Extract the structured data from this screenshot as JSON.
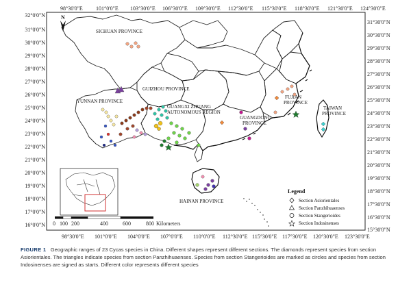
{
  "map": {
    "lon_labels": [
      "98°30'0\"E",
      "101°0'0\"E",
      "103°30'0\"E",
      "106°30'0\"E",
      "109°30'0\"E",
      "112°30'0\"E",
      "115°30'0\"E",
      "118°30'0\"E",
      "121°30'0\"E",
      "124°30'0\"E"
    ],
    "lon_labels_bottom": [
      "98°30'0\"E",
      "101°0'0\"E",
      "104°0'0\"E",
      "107°0'0\"E",
      "110°0'0\"E",
      "112°30'0\"E",
      "115°30'0\"E",
      "117°30'0\"E",
      "120°30'0\"E",
      "123°30'0\"E"
    ],
    "lat_labels_left": [
      "32°0'0\"N",
      "31°0'0\"N",
      "30°0'0\"N",
      "29°0'0\"N",
      "28°0'0\"N",
      "27°0'0\"N",
      "26°0'0\"N",
      "25°0'0\"N",
      "24°0'0\"N",
      "23°0'0\"N",
      "22°0'0\"N",
      "21°0'0\"N",
      "20°0'0\"N",
      "19°0'0\"N",
      "18°0'0\"N",
      "17°0'0\"N",
      "16°0'0\"N"
    ],
    "lat_labels_right": [
      "31°30'0\"N",
      "30°30'0\"N",
      "29°30'0\"N",
      "28°30'0\"N",
      "27°30'0\"N",
      "26°30'0\"N",
      "25°30'0\"N",
      "24°30'0\"N",
      "23°30'0\"N",
      "22°30'0\"N",
      "21°30'0\"N",
      "20°30'0\"N",
      "19°30'0\"N",
      "18°30'0\"N",
      "17°30'0\"N",
      "16°30'0\"N",
      "15°30'0\"N"
    ],
    "north_label": "N",
    "provinces": {
      "sichuan": "SICHUAN PROVINCE",
      "guizhou": "GUIZHOU PROVINCE",
      "yunnan": "YUNNAN PROVINCE",
      "guangxi_1": "GUANGXI ZHUANG",
      "guangxi_2": "AUTONOMOUS REGION",
      "guangdong_1": "GUANGDONG",
      "guangdong_2": "PROVINCE",
      "fujian_1": "FUJIAN",
      "fujian_2": "PROVINCE",
      "taiwan_1": "TAIWAN",
      "taiwan_2": "PROVINCE",
      "hainan": "HAINAN PROVINCE"
    },
    "scale_bar": {
      "ticks": [
        "0",
        "100",
        "200",
        "400",
        "600",
        "800"
      ],
      "unit": "Kilometers"
    },
    "legend": {
      "title": "Legend",
      "items": [
        {
          "shape": "diamond",
          "label": "Section Asiorientales"
        },
        {
          "shape": "triangle",
          "label": "Section Panzhihuaenses"
        },
        {
          "shape": "circle",
          "label": "Section Stangerioides"
        },
        {
          "shape": "star",
          "label": "Section Indosinenses"
        }
      ]
    },
    "colors": {
      "salmon": "#f4a582",
      "purple": "#7b3fa0",
      "magenta": "#c2188f",
      "brown": "#8b3a1a",
      "red_brown": "#a0452b",
      "teal": "#2ec4a5",
      "green": "#6fd34a",
      "dark_green": "#1e7a2e",
      "blue": "#3355cc",
      "yellow": "#f2c318",
      "pink": "#f48fb1",
      "light_yellow": "#f7e7a0",
      "orange": "#f08a3c",
      "dark_blue": "#1e2a8c",
      "cyan": "#3ccfcf"
    }
  },
  "caption": {
    "label": "FIGURE 1",
    "text": "Geographic ranges of 23 Cycas species in China. Different shapes represent different sections. The diamonds represent species from section Asiorientales. The triangles indicate species from section Panzhihuaenses. Species from section Stangerioides are marked as circles and species from section Indosinenses are signed as starts. Different color represents different species"
  }
}
